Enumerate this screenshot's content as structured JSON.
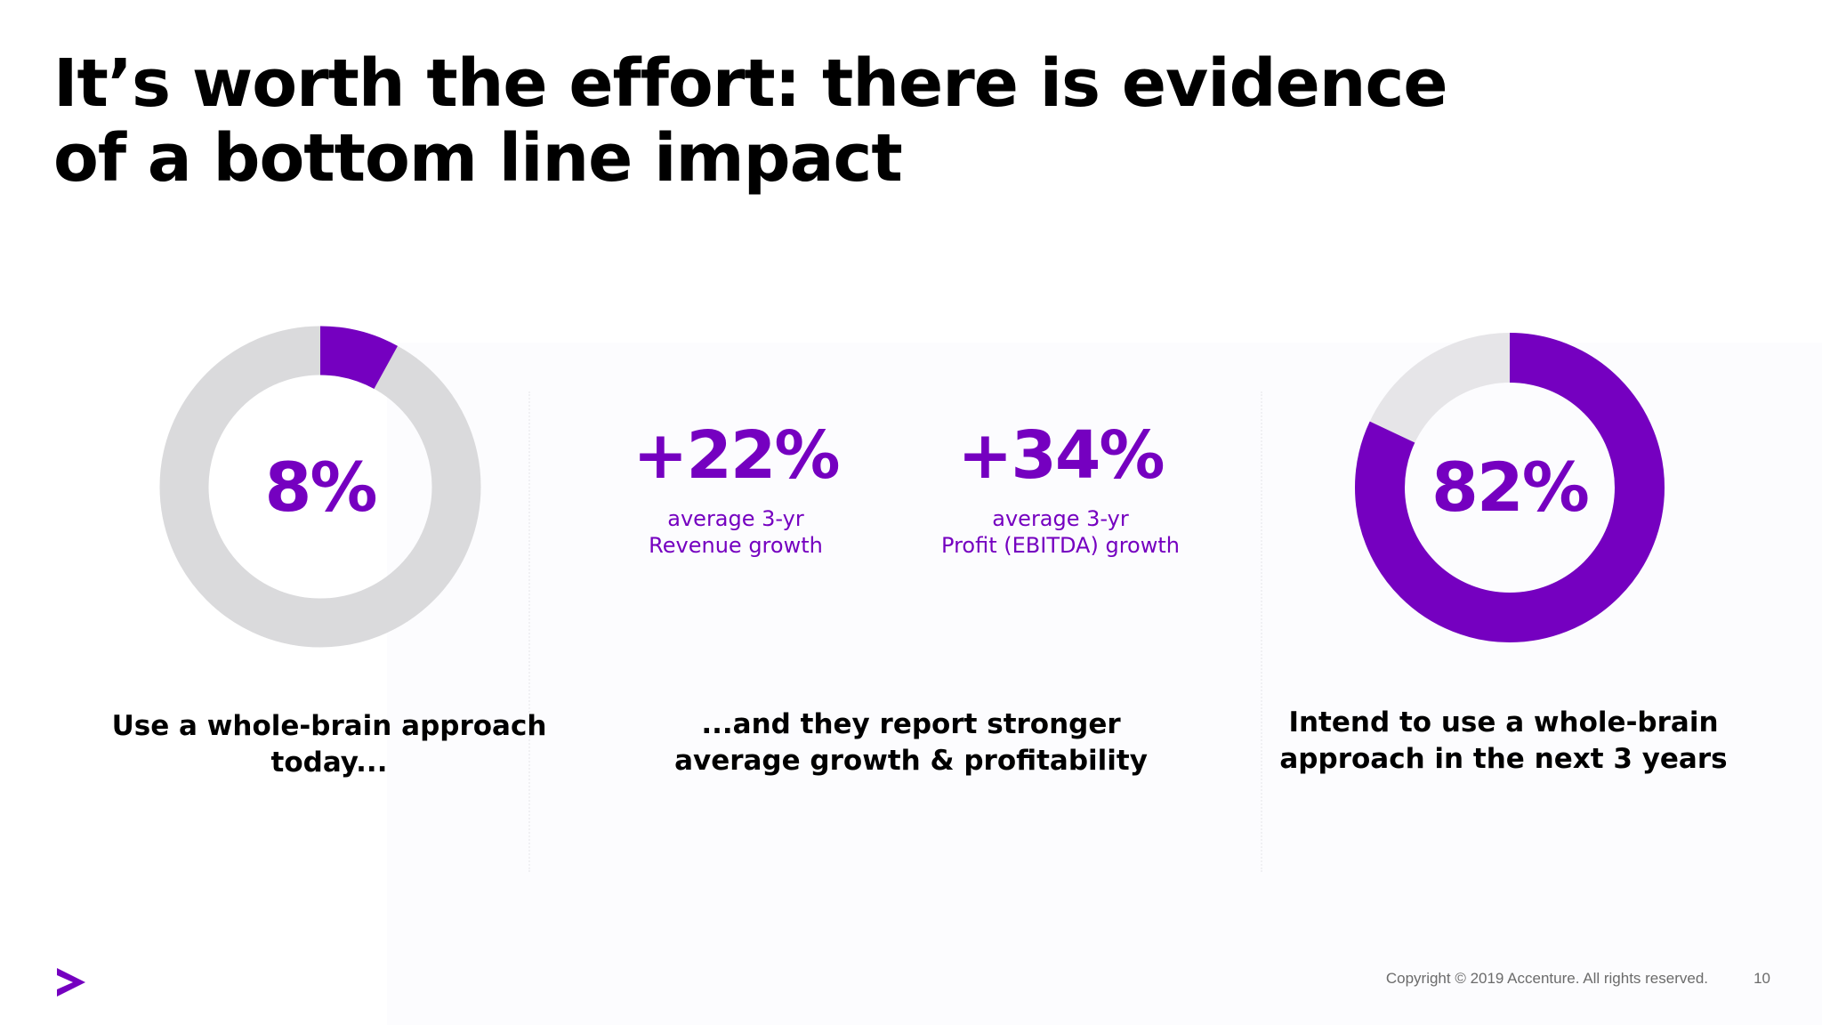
{
  "slide": {
    "title_line1": "It’s worth the effort: there is evidence",
    "title_line2": "of a bottom line impact"
  },
  "left_panel": {
    "value": "8%",
    "percent": 8,
    "caption_line1": "Use a whole-brain approach",
    "caption_line2": "today..."
  },
  "middle_panel": {
    "revenue": {
      "value": "+22%",
      "label_line1": "average 3-yr",
      "label_line2": "Revenue growth"
    },
    "profit": {
      "value": "+34%",
      "label_line1": "average 3-yr",
      "label_line2": "Profit (EBITDA) growth"
    },
    "caption_line1": "...and they report stronger",
    "caption_line2": "average growth & profitability"
  },
  "right_panel": {
    "value": "82%",
    "percent": 82,
    "caption_line1": "Intend to use a whole-brain",
    "caption_line2": "approach in the next 3 years"
  },
  "footer": {
    "copyright": "Copyright © 2019 Accenture. All rights reserved.",
    "page_number": "10"
  },
  "colors": {
    "accent": "#7500c0",
    "track": "#dadadc",
    "text": "#000000",
    "muted": "#6b6b6b"
  },
  "icons": {
    "logo": "accenture-greater-than-logo"
  }
}
